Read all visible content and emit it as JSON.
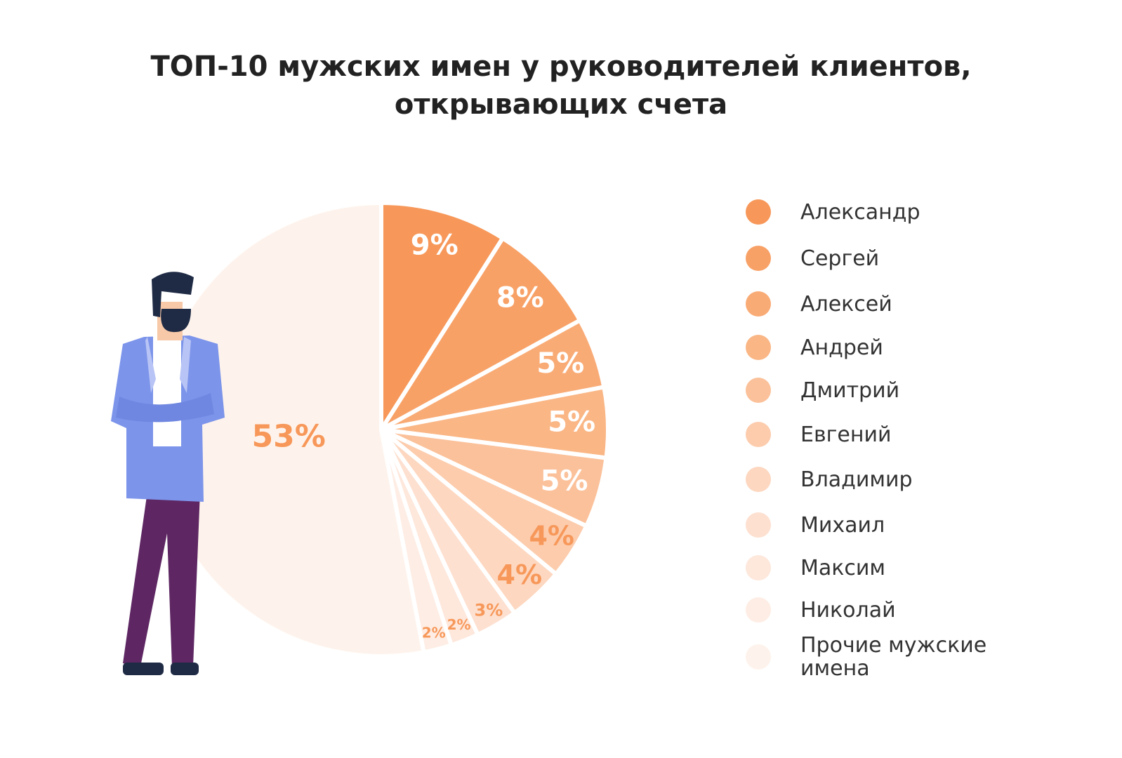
{
  "chart_data": {
    "type": "pie",
    "title": "ТОП-10 мужских имен у руководителей клиентов, открывающих счета",
    "categories": [
      "Александр",
      "Сергей",
      "Алексей",
      "Андрей",
      "Дмитрий",
      "Евгений",
      "Владимир",
      "Михаил",
      "Максим",
      "Николай",
      "Прочие мужские имена"
    ],
    "values": [
      9,
      8,
      5,
      5,
      5,
      4,
      4,
      3,
      2,
      2,
      53
    ],
    "value_labels": [
      "9%",
      "8%",
      "5%",
      "5%",
      "5%",
      "4%",
      "4%",
      "3%",
      "2%",
      "2%",
      "53%"
    ],
    "colors": [
      "#f7985a",
      "#f8a167",
      "#f9ab76",
      "#fab685",
      "#fbc19a",
      "#fcccad",
      "#fdd7c0",
      "#fde0d0",
      "#fee7db",
      "#feede4",
      "#fef3ec"
    ],
    "label_colors": [
      "#ffffff",
      "#ffffff",
      "#ffffff",
      "#ffffff",
      "#ffffff",
      "#f7985a",
      "#f7985a",
      "#f7985a",
      "#f7985a",
      "#f7985a",
      "#f7985a"
    ],
    "legend": "right"
  }
}
